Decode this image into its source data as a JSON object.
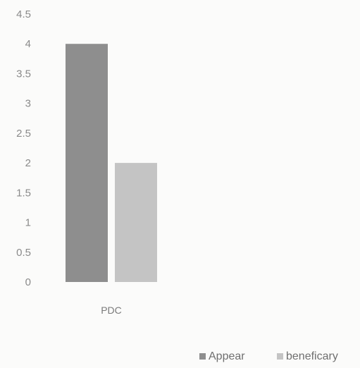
{
  "chart_data": {
    "type": "bar",
    "categories": [
      "PDC"
    ],
    "series": [
      {
        "name": "Appear",
        "values": [
          4
        ],
        "color": "#8e8e8e"
      },
      {
        "name": "beneficary",
        "values": [
          2
        ],
        "color": "#c4c4c4"
      }
    ],
    "ylim": [
      0,
      4.5
    ],
    "yticks": [
      "0",
      "0.5",
      "1",
      "1.5",
      "2",
      "2.5",
      "3",
      "3.5",
      "4",
      "4.5"
    ],
    "grid": false,
    "legend_position": "bottom-right"
  }
}
